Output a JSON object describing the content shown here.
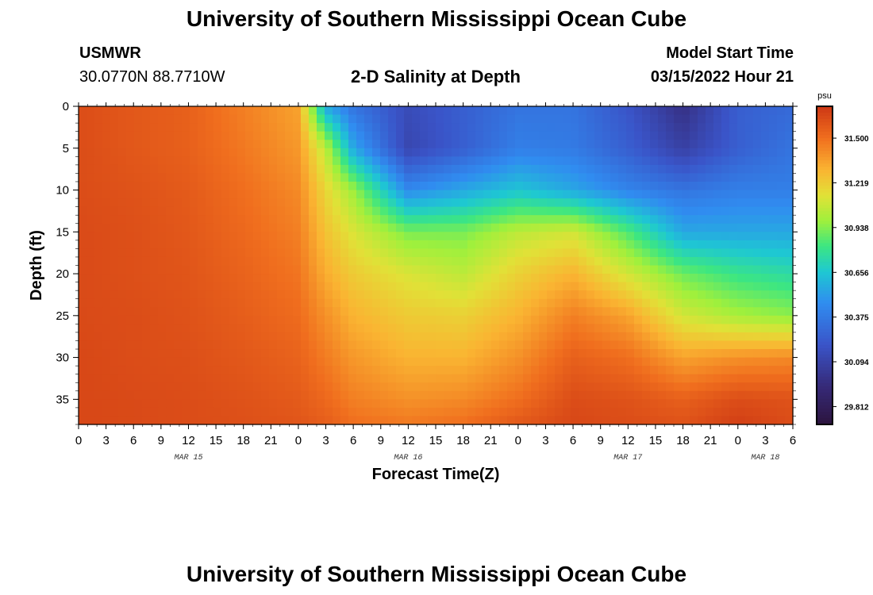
{
  "title": "University of Southern Mississippi Ocean Cube",
  "station": {
    "id": "USMWR",
    "coords": "30.0770N  88.7710W"
  },
  "subtitle": "2-D Salinity at Depth",
  "model": {
    "label": "Model Start Time",
    "value": "03/15/2022 Hour 21"
  },
  "footer_title": "University of Southern Mississippi Ocean Cube",
  "chart_data": {
    "type": "heatmap",
    "title": "2-D Salinity at Depth",
    "xlabel": "Forecast Time(Z)",
    "ylabel": "Depth (ft)",
    "x_tick_labels": [
      "0",
      "3",
      "6",
      "9",
      "12",
      "15",
      "18",
      "21",
      "0",
      "3",
      "6",
      "9",
      "12",
      "15",
      "18",
      "21",
      "0",
      "3",
      "6",
      "9",
      "12",
      "15",
      "18",
      "21",
      "0",
      "3",
      "6"
    ],
    "x_date_labels": [
      {
        "label": "MAR 15",
        "at_tick": 4
      },
      {
        "label": "MAR 16",
        "at_tick": 12
      },
      {
        "label": "MAR 17",
        "at_tick": 20
      },
      {
        "label": "MAR 18",
        "at_tick": 25
      }
    ],
    "xlim": [
      0,
      78
    ],
    "y_ticks": [
      0,
      5,
      10,
      15,
      20,
      25,
      30,
      35
    ],
    "ylim": [
      0,
      38
    ],
    "y_inverted": true,
    "colorbar": {
      "unit": "psu",
      "min": 29.7,
      "max": 31.7,
      "tick_values": [
        31.5,
        31.219,
        30.938,
        30.656,
        30.375,
        30.094,
        29.812
      ],
      "tick_labels": [
        "31.500",
        "31.219",
        "30.938",
        "30.656",
        "30.375",
        "30.094",
        "29.812"
      ]
    },
    "salinity_estimate_psu": {
      "hours": [
        0,
        6,
        12,
        18,
        24,
        27,
        30,
        36,
        42,
        48,
        54,
        60,
        66,
        72,
        78
      ],
      "depths_ft": [
        0,
        5,
        10,
        15,
        20,
        25,
        30,
        35,
        38
      ],
      "values": [
        [
          31.62,
          31.58,
          31.55,
          31.45,
          31.35,
          30.55,
          30.35,
          30.15,
          30.25,
          30.35,
          30.35,
          30.2,
          29.98,
          30.25,
          30.3
        ],
        [
          31.62,
          31.58,
          31.55,
          31.47,
          31.38,
          31.05,
          30.55,
          30.12,
          30.25,
          30.4,
          30.38,
          30.25,
          30.08,
          30.25,
          30.35
        ],
        [
          31.62,
          31.6,
          31.57,
          31.5,
          31.42,
          31.18,
          30.98,
          30.45,
          30.55,
          30.65,
          30.55,
          30.42,
          30.35,
          30.4,
          30.4
        ],
        [
          31.63,
          31.61,
          31.58,
          31.52,
          31.45,
          31.25,
          31.12,
          30.92,
          30.92,
          31.05,
          31.1,
          30.85,
          30.55,
          30.55,
          30.55
        ],
        [
          31.63,
          31.61,
          31.59,
          31.54,
          31.48,
          31.32,
          31.22,
          31.12,
          31.05,
          31.2,
          31.3,
          31.1,
          30.9,
          30.8,
          30.75
        ],
        [
          31.63,
          31.62,
          31.6,
          31.56,
          31.51,
          31.4,
          31.3,
          31.22,
          31.2,
          31.3,
          31.45,
          31.35,
          31.1,
          31.0,
          30.95
        ],
        [
          31.64,
          31.62,
          31.61,
          31.58,
          31.54,
          31.46,
          31.38,
          31.3,
          31.3,
          31.4,
          31.55,
          31.5,
          31.35,
          31.4,
          31.42
        ],
        [
          31.64,
          31.63,
          31.62,
          31.6,
          31.57,
          31.52,
          31.45,
          31.4,
          31.42,
          31.5,
          31.62,
          31.6,
          31.55,
          31.62,
          31.6
        ],
        [
          31.64,
          31.63,
          31.62,
          31.61,
          31.59,
          31.56,
          31.5,
          31.47,
          31.5,
          31.58,
          31.64,
          31.62,
          31.6,
          31.67,
          31.62
        ]
      ]
    }
  }
}
